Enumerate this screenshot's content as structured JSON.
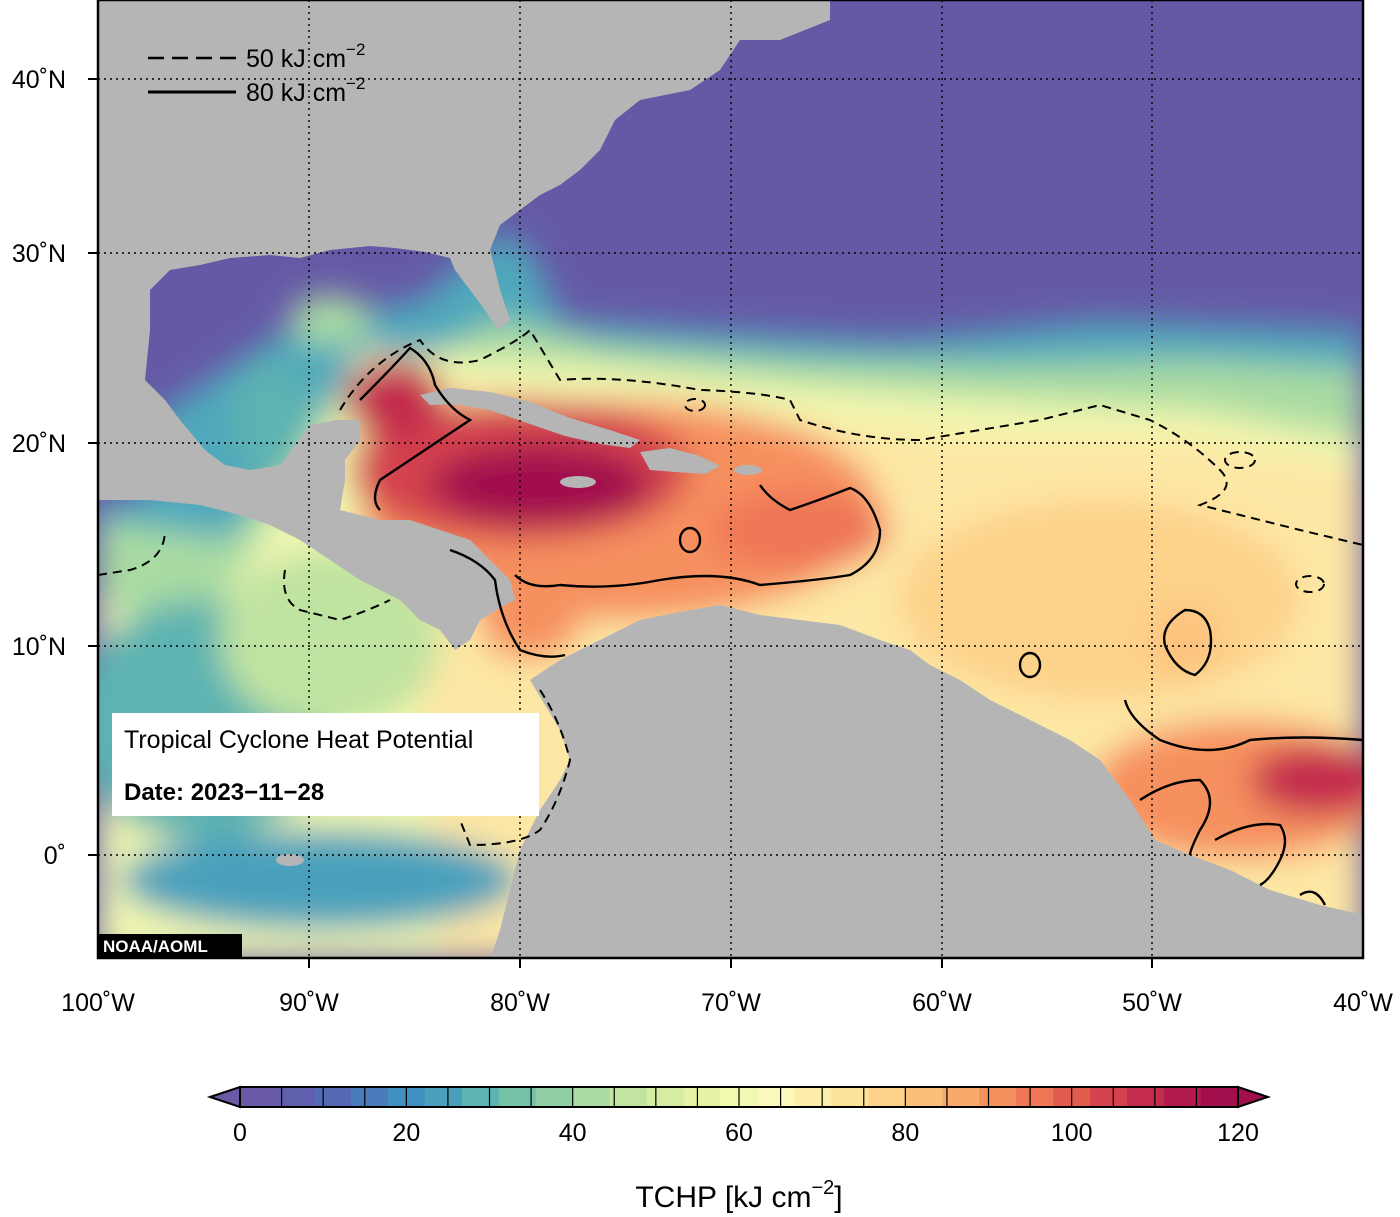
{
  "legend": {
    "entries": [
      {
        "style": "dashed",
        "value": "50",
        "unit": "kJ cm",
        "exp": "−2"
      },
      {
        "style": "solid",
        "value": "80",
        "unit": "kJ cm",
        "exp": "−2"
      }
    ]
  },
  "info_box": {
    "title": "Tropical Cyclone Heat Potential",
    "date_label": "Date:",
    "date_value": "2023−11−28"
  },
  "credit": "NOAA/AOML",
  "axes": {
    "lat_ticks": [
      {
        "value": 40,
        "label": "40˚N"
      },
      {
        "value": 30,
        "label": "30˚N"
      },
      {
        "value": 20,
        "label": "20˚N"
      },
      {
        "value": 10,
        "label": "10˚N"
      },
      {
        "value": 0,
        "label": "0˚"
      }
    ],
    "lon_ticks": [
      {
        "value": -100,
        "label": "100˚W"
      },
      {
        "value": -90,
        "label": "90˚W"
      },
      {
        "value": -80,
        "label": "80˚W"
      },
      {
        "value": -70,
        "label": "70˚W"
      },
      {
        "value": -60,
        "label": "60˚W"
      },
      {
        "value": -50,
        "label": "50˚W"
      },
      {
        "value": -40,
        "label": "40˚W"
      }
    ],
    "lon_range": [
      -100,
      -40
    ],
    "lat_range": [
      -5,
      45
    ],
    "grid": true
  },
  "colorbar": {
    "title": "TCHP [kJ cm",
    "title_exp": "−2",
    "title_close": "]",
    "min": 0,
    "max": 120,
    "tick_labels": [
      "0",
      "20",
      "40",
      "60",
      "80",
      "100",
      "120"
    ],
    "extend": "both",
    "colors": [
      "#6a5aa6",
      "#5f5fae",
      "#5468b4",
      "#4a7bba",
      "#3f8fc0",
      "#4aa0bc",
      "#5db3b1",
      "#74c2a8",
      "#8fcfa3",
      "#a9dba2",
      "#c1e4a0",
      "#d6eca2",
      "#e6f3a6",
      "#f2f8b0",
      "#fbf8bb",
      "#fdefab",
      "#fde29a",
      "#fdd28a",
      "#fcbf7b",
      "#faa96c",
      "#f6905f",
      "#ef7656",
      "#e35c50",
      "#d4424d",
      "#c42c4e",
      "#b2194f",
      "#a10f4d"
    ],
    "below_color": "#6a5aa6",
    "above_color": "#a10f4d"
  },
  "colors": {
    "land": "#b5b5b5",
    "cold_ocean": "#6559a6"
  }
}
